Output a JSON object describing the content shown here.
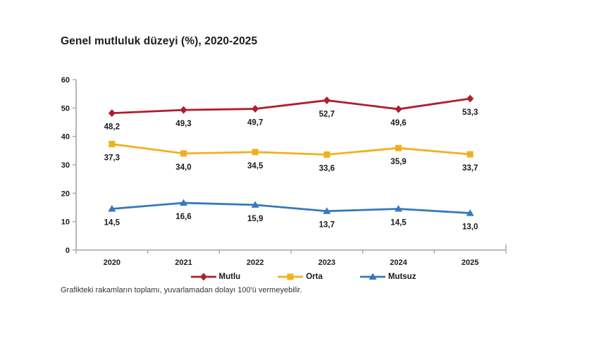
{
  "chart_data": {
    "type": "line",
    "title": "Genel mutluluk düzeyi (%), 2020-2025",
    "categories": [
      "2020",
      "2021",
      "2022",
      "2023",
      "2024",
      "2025"
    ],
    "series": [
      {
        "name": "Mutlu",
        "color": "#AF1E2D",
        "marker": "diamond",
        "values": [
          48.2,
          49.3,
          49.7,
          52.7,
          49.6,
          53.3
        ]
      },
      {
        "name": "Orta",
        "color": "#F2B01E",
        "marker": "square",
        "values": [
          37.3,
          34.0,
          34.5,
          33.6,
          35.9,
          33.7
        ]
      },
      {
        "name": "Mutsuz",
        "color": "#3579BE",
        "marker": "triangle",
        "values": [
          14.5,
          16.6,
          15.9,
          13.7,
          14.5,
          13.0
        ]
      }
    ],
    "ylim": [
      0,
      60
    ],
    "ytick_step": 10,
    "grid": false,
    "legend_position": "bottom",
    "decimal_separator": ",",
    "data_labels": true,
    "axis_color": "#a6a6a6",
    "text_color": "#1a1a1a"
  },
  "footnote": "Grafikteki rakamların toplamı, yuvarlamadan dolayı 100'ü vermeyebilir."
}
